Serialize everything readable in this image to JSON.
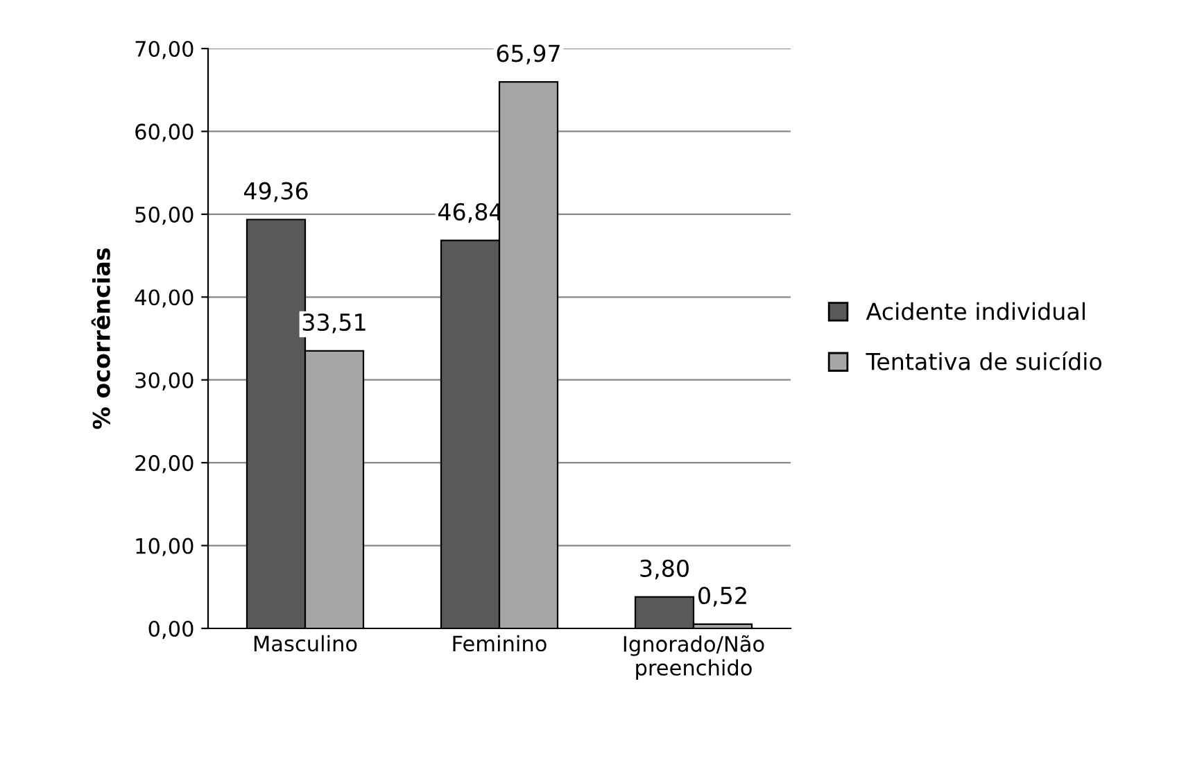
{
  "chart_data": {
    "type": "bar",
    "ylabel": "% ocorrências",
    "categories": [
      "Masculino",
      "Feminino",
      "Ignorado/Não\npreenchido"
    ],
    "series": [
      {
        "name": "Acidente individual",
        "color": "#595959",
        "values": [
          49.36,
          46.84,
          3.8
        ],
        "value_labels": [
          "49,36",
          "46,84",
          "3,80"
        ]
      },
      {
        "name": "Tentativa de suicídio",
        "color": "#a6a6a6",
        "values": [
          33.51,
          65.97,
          0.52
        ],
        "value_labels": [
          "33,51",
          "65,97",
          "0,52"
        ]
      }
    ],
    "ylim": [
      0,
      70
    ],
    "yticks": [
      {
        "value": 0,
        "label": "0,00"
      },
      {
        "value": 10,
        "label": "10,00"
      },
      {
        "value": 20,
        "label": "20,00"
      },
      {
        "value": 30,
        "label": "30,00"
      },
      {
        "value": 40,
        "label": "40,00"
      },
      {
        "value": 50,
        "label": "50,00"
      },
      {
        "value": 60,
        "label": "60,00"
      },
      {
        "value": 70,
        "label": "70,00"
      }
    ],
    "grid": "y",
    "legend": "right"
  }
}
